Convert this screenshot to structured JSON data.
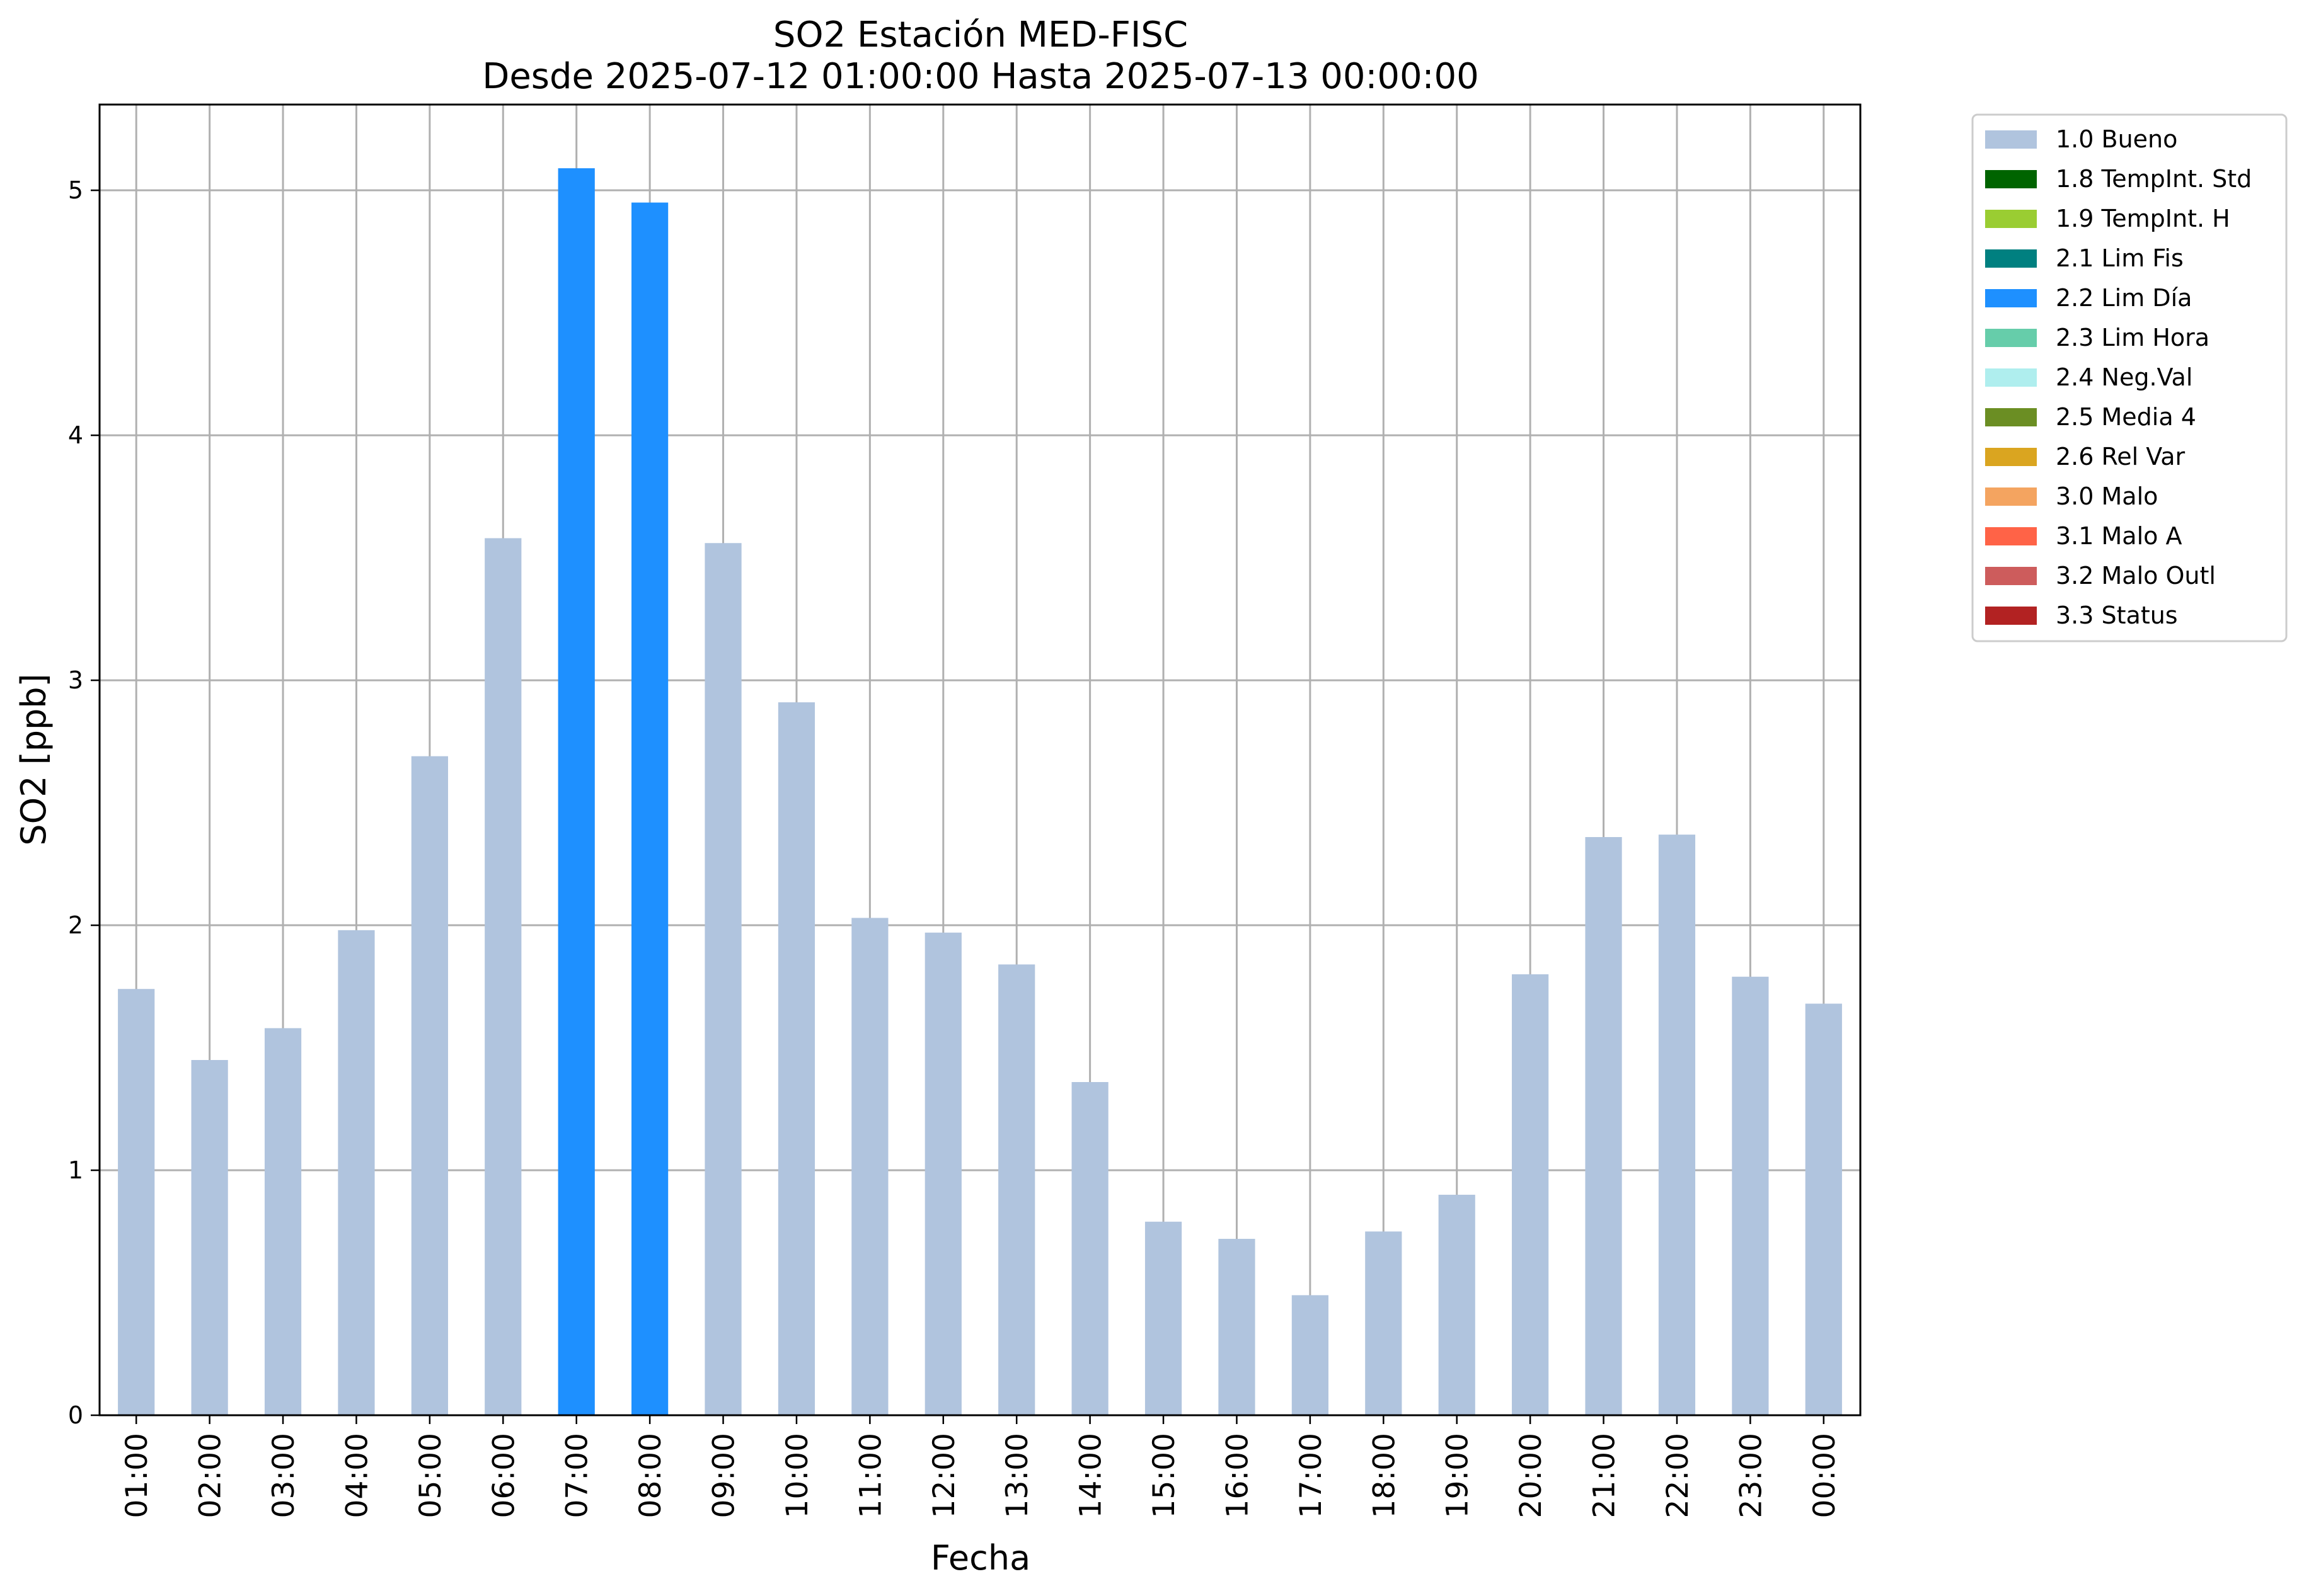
{
  "chart_data": {
    "type": "bar",
    "title_line1": "SO2 Estación MED-FISC",
    "title_line2": "Desde 2025-07-12 01:00:00 Hasta 2025-07-13 00:00:00",
    "xlabel": "Fecha",
    "ylabel": "SO2 [ppb]",
    "ylim": [
      0,
      5.35
    ],
    "yticks": [
      "0",
      "1",
      "2",
      "3",
      "4",
      "5"
    ],
    "grid": true,
    "legend_placement": "outside-top-right",
    "categories": [
      "01:00",
      "02:00",
      "03:00",
      "04:00",
      "05:00",
      "06:00",
      "07:00",
      "08:00",
      "09:00",
      "10:00",
      "11:00",
      "12:00",
      "13:00",
      "14:00",
      "15:00",
      "16:00",
      "17:00",
      "18:00",
      "19:00",
      "20:00",
      "21:00",
      "22:00",
      "23:00",
      "00:00"
    ],
    "values": [
      1.74,
      1.45,
      1.58,
      1.98,
      2.69,
      3.58,
      5.09,
      4.95,
      3.56,
      2.91,
      2.03,
      1.97,
      1.84,
      1.36,
      0.79,
      0.72,
      0.49,
      0.75,
      0.9,
      1.8,
      2.36,
      2.37,
      1.79,
      1.68
    ],
    "flags": [
      "1.0 Bueno",
      "1.0 Bueno",
      "1.0 Bueno",
      "1.0 Bueno",
      "1.0 Bueno",
      "1.0 Bueno",
      "2.2 Lim Día",
      "2.2 Lim Día",
      "1.0 Bueno",
      "1.0 Bueno",
      "1.0 Bueno",
      "1.0 Bueno",
      "1.0 Bueno",
      "1.0 Bueno",
      "1.0 Bueno",
      "1.0 Bueno",
      "1.0 Bueno",
      "1.0 Bueno",
      "1.0 Bueno",
      "1.0 Bueno",
      "1.0 Bueno",
      "1.0 Bueno",
      "1.0 Bueno",
      "1.0 Bueno"
    ],
    "legend": [
      {
        "label": "1.0 Bueno",
        "color": "#b0c4de"
      },
      {
        "label": "1.8 TempInt. Std",
        "color": "#006400"
      },
      {
        "label": "1.9 TempInt. H",
        "color": "#9acd32"
      },
      {
        "label": "2.1 Lim Fis",
        "color": "#008080"
      },
      {
        "label": "2.2 Lim Día",
        "color": "#1e90ff"
      },
      {
        "label": "2.3 Lim Hora",
        "color": "#66cdaa"
      },
      {
        "label": "2.4 Neg.Val",
        "color": "#afeeee"
      },
      {
        "label": "2.5 Media 4",
        "color": "#6b8e23"
      },
      {
        "label": "2.6 Rel Var",
        "color": "#daa520"
      },
      {
        "label": "3.0 Malo",
        "color": "#f4a460"
      },
      {
        "label": "3.1 Malo A",
        "color": "#ff6347"
      },
      {
        "label": "3.2 Malo Outl",
        "color": "#cd5c5c"
      },
      {
        "label": "3.3 Status",
        "color": "#b22222"
      }
    ]
  }
}
